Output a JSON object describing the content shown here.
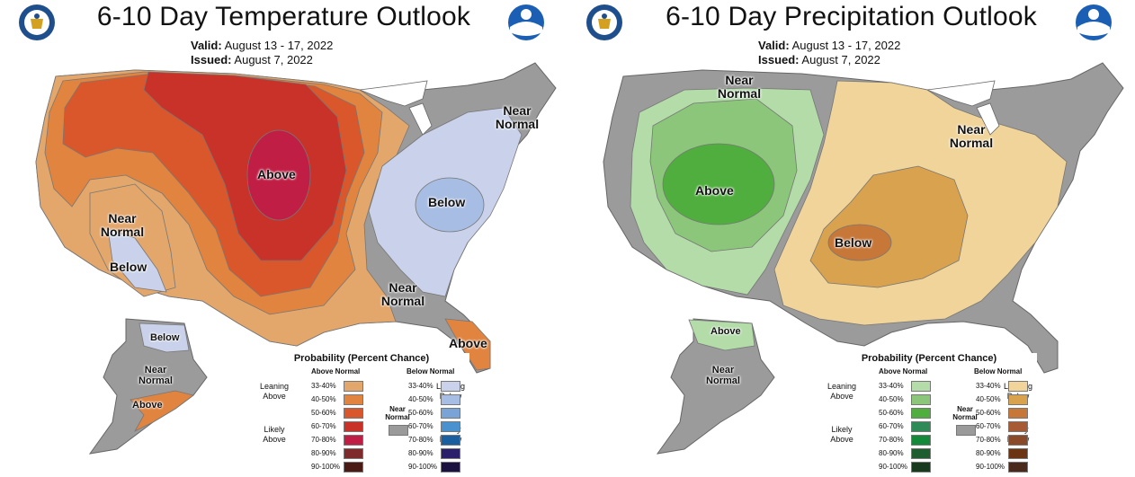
{
  "panels": [
    {
      "title": "6-10 Day Temperature Outlook",
      "valid_label": "Valid:",
      "valid": "August 13 - 17, 2022",
      "issued_label": "Issued:",
      "issued": "August 7, 2022",
      "labels": [
        "Above",
        "Near Normal",
        "Below",
        "Below",
        "Near Normal",
        "Near Normal",
        "Above",
        "Below",
        "Near Normal",
        "Above"
      ],
      "legend": {
        "title": "Probability (Percent Chance)",
        "left_head": "Above Normal",
        "right_head": "Below Normal",
        "levels": [
          "33-40%",
          "40-50%",
          "50-60%",
          "60-70%",
          "70-80%",
          "80-90%",
          "90-100%"
        ],
        "left_colors": [
          "#e3a66b",
          "#e0843f",
          "#d9572a",
          "#c93228",
          "#c11e45",
          "#7f2b2b",
          "#4b1a14"
        ],
        "right_colors": [
          "#c9d2ea",
          "#a8bde3",
          "#7aa4d8",
          "#4a91cf",
          "#1c5fa0",
          "#2a1f6b",
          "#1b1240"
        ],
        "lean_left": "Leaning Above",
        "likely_left": "Likely Above",
        "lean_right": "Leaning Below",
        "likely_right": "Likely Below",
        "near": "Near Normal",
        "near_color": "#9a9a9a"
      }
    },
    {
      "title": "6-10 Day Precipitation Outlook",
      "valid_label": "Valid:",
      "valid": "August 13 - 17, 2022",
      "issued_label": "Issued:",
      "issued": "August 7, 2022",
      "labels": [
        "Near Normal",
        "Above",
        "Below",
        "Near Normal",
        "Above",
        "Near Normal"
      ],
      "legend": {
        "title": "Probability (Percent Chance)",
        "left_head": "Above Normal",
        "right_head": "Below Normal",
        "levels": [
          "33-40%",
          "40-50%",
          "50-60%",
          "60-70%",
          "70-80%",
          "80-90%",
          "90-100%"
        ],
        "left_colors": [
          "#b3dca9",
          "#8cc67a",
          "#4fae3d",
          "#2e8b57",
          "#138a3a",
          "#1f5c2e",
          "#173b1c"
        ],
        "right_colors": [
          "#f0d49a",
          "#d9a24f",
          "#c77738",
          "#a75b34",
          "#8a4a2a",
          "#6b3514",
          "#4a2a1a"
        ],
        "lean_left": "Leaning Above",
        "likely_left": "Likely Above",
        "lean_right": "Leaning Below",
        "likely_right": "Likely Below",
        "near": "Near Normal",
        "near_color": "#9a9a9a"
      }
    }
  ],
  "colors": {
    "near_gray": "#9b9b9b",
    "great_lakes": "#ffffff"
  }
}
